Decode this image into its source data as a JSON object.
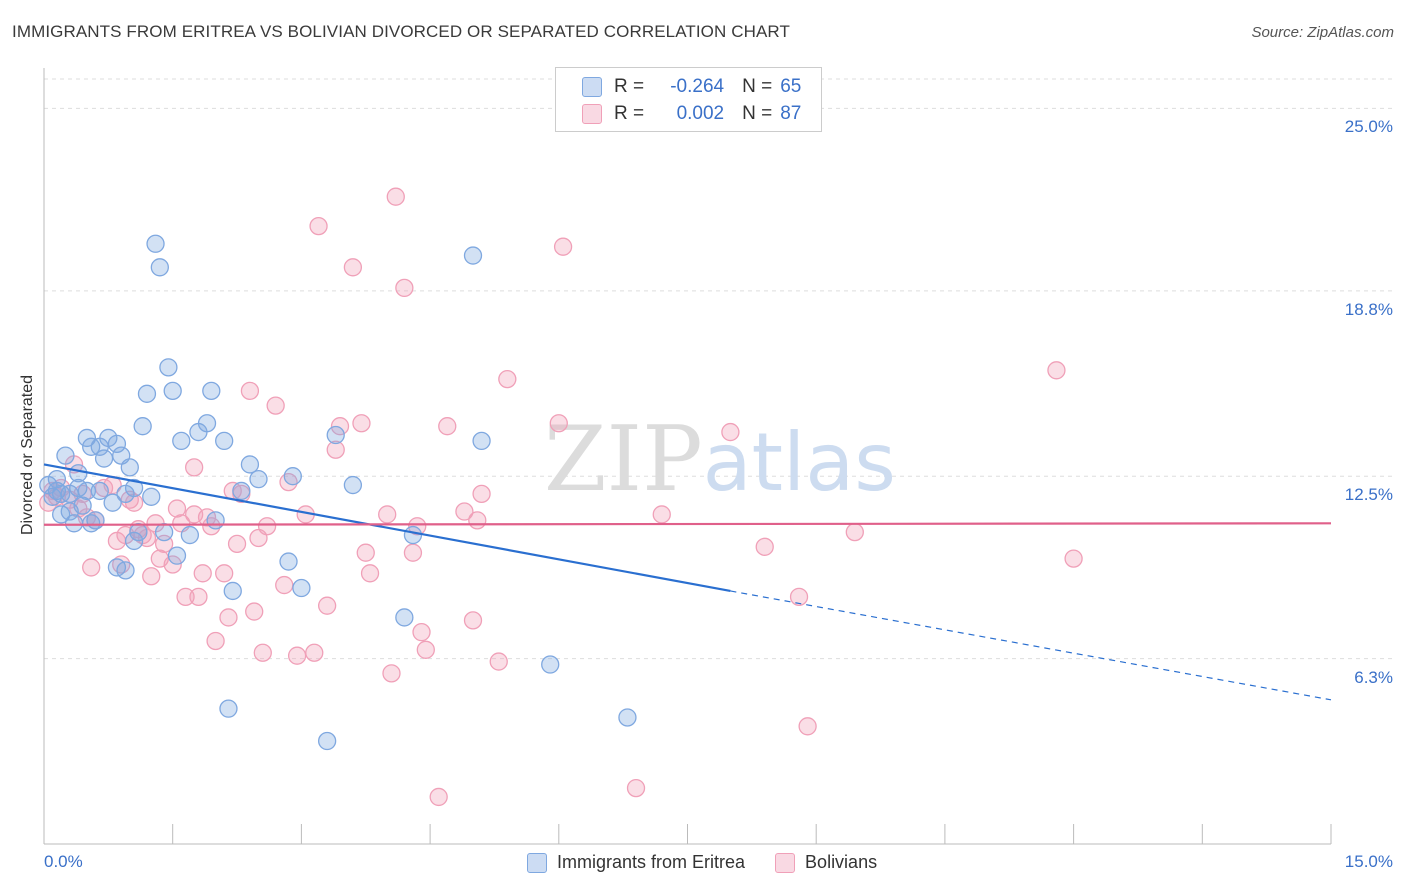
{
  "title": "IMMIGRANTS FROM ERITREA VS BOLIVIAN DIVORCED OR SEPARATED CORRELATION CHART",
  "source": "Source: ZipAtlas.com",
  "watermark": "ZIPatlas",
  "legend": {
    "series1": {
      "r_label": "R =",
      "r_value": "-0.264",
      "n_label": "N =",
      "n_value": "65",
      "color": "#7fa8e0"
    },
    "series2": {
      "r_label": "R =",
      "r_value": "0.002",
      "n_label": "N =",
      "n_value": "87",
      "color": "#f0a0b8"
    }
  },
  "bottom_legend": {
    "series1": "Immigrants from Eritrea",
    "series2": "Bolivians"
  },
  "chart_data": {
    "type": "scatter",
    "title": "IMMIGRANTS FROM ERITREA VS BOLIVIAN DIVORCED OR SEPARATED CORRELATION CHART",
    "xlabel": "",
    "ylabel": "Divorced or Separated",
    "xlim": [
      0,
      15
    ],
    "ylim": [
      0,
      26.0
    ],
    "x_tick_labels": [
      "0.0%",
      "15.0%"
    ],
    "y_ticks": [
      6.3,
      12.5,
      18.8,
      25.0
    ],
    "y_tick_labels": [
      "6.3%",
      "12.5%",
      "18.8%",
      "25.0%"
    ],
    "grid": true,
    "series": [
      {
        "name": "Immigrants from Eritrea",
        "color": "#7fa8e0",
        "line_color": "#2a6fd0",
        "trend": {
          "x0": 0,
          "y0": 12.9,
          "x1": 8.0,
          "y1": 8.6,
          "dash_to_x": 15.0,
          "dash_to_y": 4.9
        },
        "points": [
          [
            0.05,
            12.2
          ],
          [
            0.1,
            11.8
          ],
          [
            0.15,
            12.0
          ],
          [
            0.2,
            11.2
          ],
          [
            0.25,
            13.2
          ],
          [
            0.3,
            11.3
          ],
          [
            0.35,
            10.9
          ],
          [
            0.4,
            12.1
          ],
          [
            0.45,
            11.5
          ],
          [
            0.5,
            13.8
          ],
          [
            0.55,
            13.5
          ],
          [
            0.6,
            11.0
          ],
          [
            0.65,
            12.0
          ],
          [
            0.7,
            13.1
          ],
          [
            0.75,
            13.8
          ],
          [
            0.8,
            11.6
          ],
          [
            0.85,
            13.6
          ],
          [
            0.9,
            13.2
          ],
          [
            0.95,
            11.9
          ],
          [
            1.0,
            12.8
          ],
          [
            1.05,
            12.1
          ],
          [
            1.1,
            10.6
          ],
          [
            1.15,
            14.2
          ],
          [
            1.2,
            15.3
          ],
          [
            1.25,
            11.8
          ],
          [
            1.3,
            20.4
          ],
          [
            1.35,
            19.6
          ],
          [
            1.4,
            10.6
          ],
          [
            1.45,
            16.2
          ],
          [
            1.5,
            15.4
          ],
          [
            1.55,
            9.8
          ],
          [
            1.6,
            13.7
          ],
          [
            1.7,
            10.5
          ],
          [
            1.8,
            14.0
          ],
          [
            1.9,
            14.3
          ],
          [
            1.95,
            15.4
          ],
          [
            2.0,
            11.0
          ],
          [
            2.1,
            13.7
          ],
          [
            2.2,
            8.6
          ],
          [
            2.3,
            12.0
          ],
          [
            2.4,
            12.9
          ],
          [
            2.5,
            12.4
          ],
          [
            2.85,
            9.6
          ],
          [
            2.9,
            12.5
          ],
          [
            3.0,
            8.7
          ],
          [
            3.3,
            3.5
          ],
          [
            3.4,
            13.9
          ],
          [
            3.6,
            12.2
          ],
          [
            4.2,
            7.7
          ],
          [
            4.3,
            10.5
          ],
          [
            5.0,
            20.0
          ],
          [
            5.1,
            13.7
          ],
          [
            5.9,
            6.1
          ],
          [
            6.8,
            4.3
          ],
          [
            2.15,
            4.6
          ],
          [
            0.15,
            12.4
          ],
          [
            0.3,
            11.9
          ],
          [
            0.55,
            10.9
          ],
          [
            0.65,
            13.5
          ],
          [
            0.85,
            9.4
          ],
          [
            0.95,
            9.3
          ],
          [
            1.05,
            10.3
          ],
          [
            0.4,
            12.6
          ],
          [
            0.2,
            11.9
          ],
          [
            0.5,
            12.0
          ]
        ]
      },
      {
        "name": "Bolivians",
        "color": "#f0a0b8",
        "line_color": "#e0608a",
        "trend": {
          "x0": 0,
          "y0": 10.85,
          "x1": 15.0,
          "y1": 10.9
        },
        "points": [
          [
            0.05,
            11.6
          ],
          [
            0.1,
            12.0
          ],
          [
            0.15,
            11.8
          ],
          [
            0.2,
            12.1
          ],
          [
            0.3,
            11.7
          ],
          [
            0.35,
            12.9
          ],
          [
            0.4,
            11.4
          ],
          [
            0.45,
            11.9
          ],
          [
            0.5,
            11.1
          ],
          [
            0.55,
            9.4
          ],
          [
            0.6,
            11.0
          ],
          [
            0.7,
            12.1
          ],
          [
            0.8,
            12.2
          ],
          [
            0.85,
            10.3
          ],
          [
            0.9,
            9.5
          ],
          [
            0.95,
            10.5
          ],
          [
            1.0,
            11.7
          ],
          [
            1.05,
            11.6
          ],
          [
            1.1,
            10.7
          ],
          [
            1.15,
            10.5
          ],
          [
            1.2,
            10.4
          ],
          [
            1.25,
            9.1
          ],
          [
            1.3,
            10.9
          ],
          [
            1.35,
            9.7
          ],
          [
            1.4,
            10.2
          ],
          [
            1.5,
            9.5
          ],
          [
            1.55,
            11.4
          ],
          [
            1.6,
            10.9
          ],
          [
            1.65,
            8.4
          ],
          [
            1.75,
            11.2
          ],
          [
            1.8,
            8.4
          ],
          [
            1.85,
            9.2
          ],
          [
            1.9,
            11.1
          ],
          [
            1.95,
            10.8
          ],
          [
            2.0,
            6.9
          ],
          [
            2.1,
            9.2
          ],
          [
            2.15,
            7.7
          ],
          [
            2.2,
            12.0
          ],
          [
            2.25,
            10.2
          ],
          [
            2.3,
            11.9
          ],
          [
            2.4,
            15.4
          ],
          [
            2.45,
            7.9
          ],
          [
            2.5,
            10.4
          ],
          [
            2.55,
            6.5
          ],
          [
            2.6,
            10.8
          ],
          [
            2.7,
            14.9
          ],
          [
            2.8,
            8.8
          ],
          [
            2.85,
            12.3
          ],
          [
            2.95,
            6.4
          ],
          [
            3.05,
            11.2
          ],
          [
            3.15,
            6.5
          ],
          [
            3.2,
            21.0
          ],
          [
            3.3,
            8.1
          ],
          [
            3.4,
            13.4
          ],
          [
            3.45,
            14.2
          ],
          [
            3.6,
            19.6
          ],
          [
            3.7,
            14.3
          ],
          [
            3.75,
            9.9
          ],
          [
            3.8,
            9.2
          ],
          [
            4.0,
            11.2
          ],
          [
            4.05,
            5.8
          ],
          [
            4.1,
            22.0
          ],
          [
            4.2,
            18.9
          ],
          [
            4.3,
            9.9
          ],
          [
            4.35,
            10.8
          ],
          [
            4.4,
            7.2
          ],
          [
            4.45,
            6.6
          ],
          [
            4.6,
            1.6
          ],
          [
            4.7,
            14.2
          ],
          [
            4.9,
            11.3
          ],
          [
            5.0,
            7.6
          ],
          [
            5.05,
            11.0
          ],
          [
            5.1,
            11.9
          ],
          [
            5.3,
            6.2
          ],
          [
            5.4,
            15.8
          ],
          [
            6.0,
            14.3
          ],
          [
            6.05,
            20.3
          ],
          [
            6.9,
            1.9
          ],
          [
            7.2,
            11.2
          ],
          [
            8.0,
            14.0
          ],
          [
            8.4,
            10.1
          ],
          [
            8.8,
            8.4
          ],
          [
            8.9,
            4.0
          ],
          [
            9.45,
            10.6
          ],
          [
            11.8,
            16.1
          ],
          [
            12.0,
            9.7
          ],
          [
            1.75,
            12.8
          ]
        ]
      }
    ]
  }
}
